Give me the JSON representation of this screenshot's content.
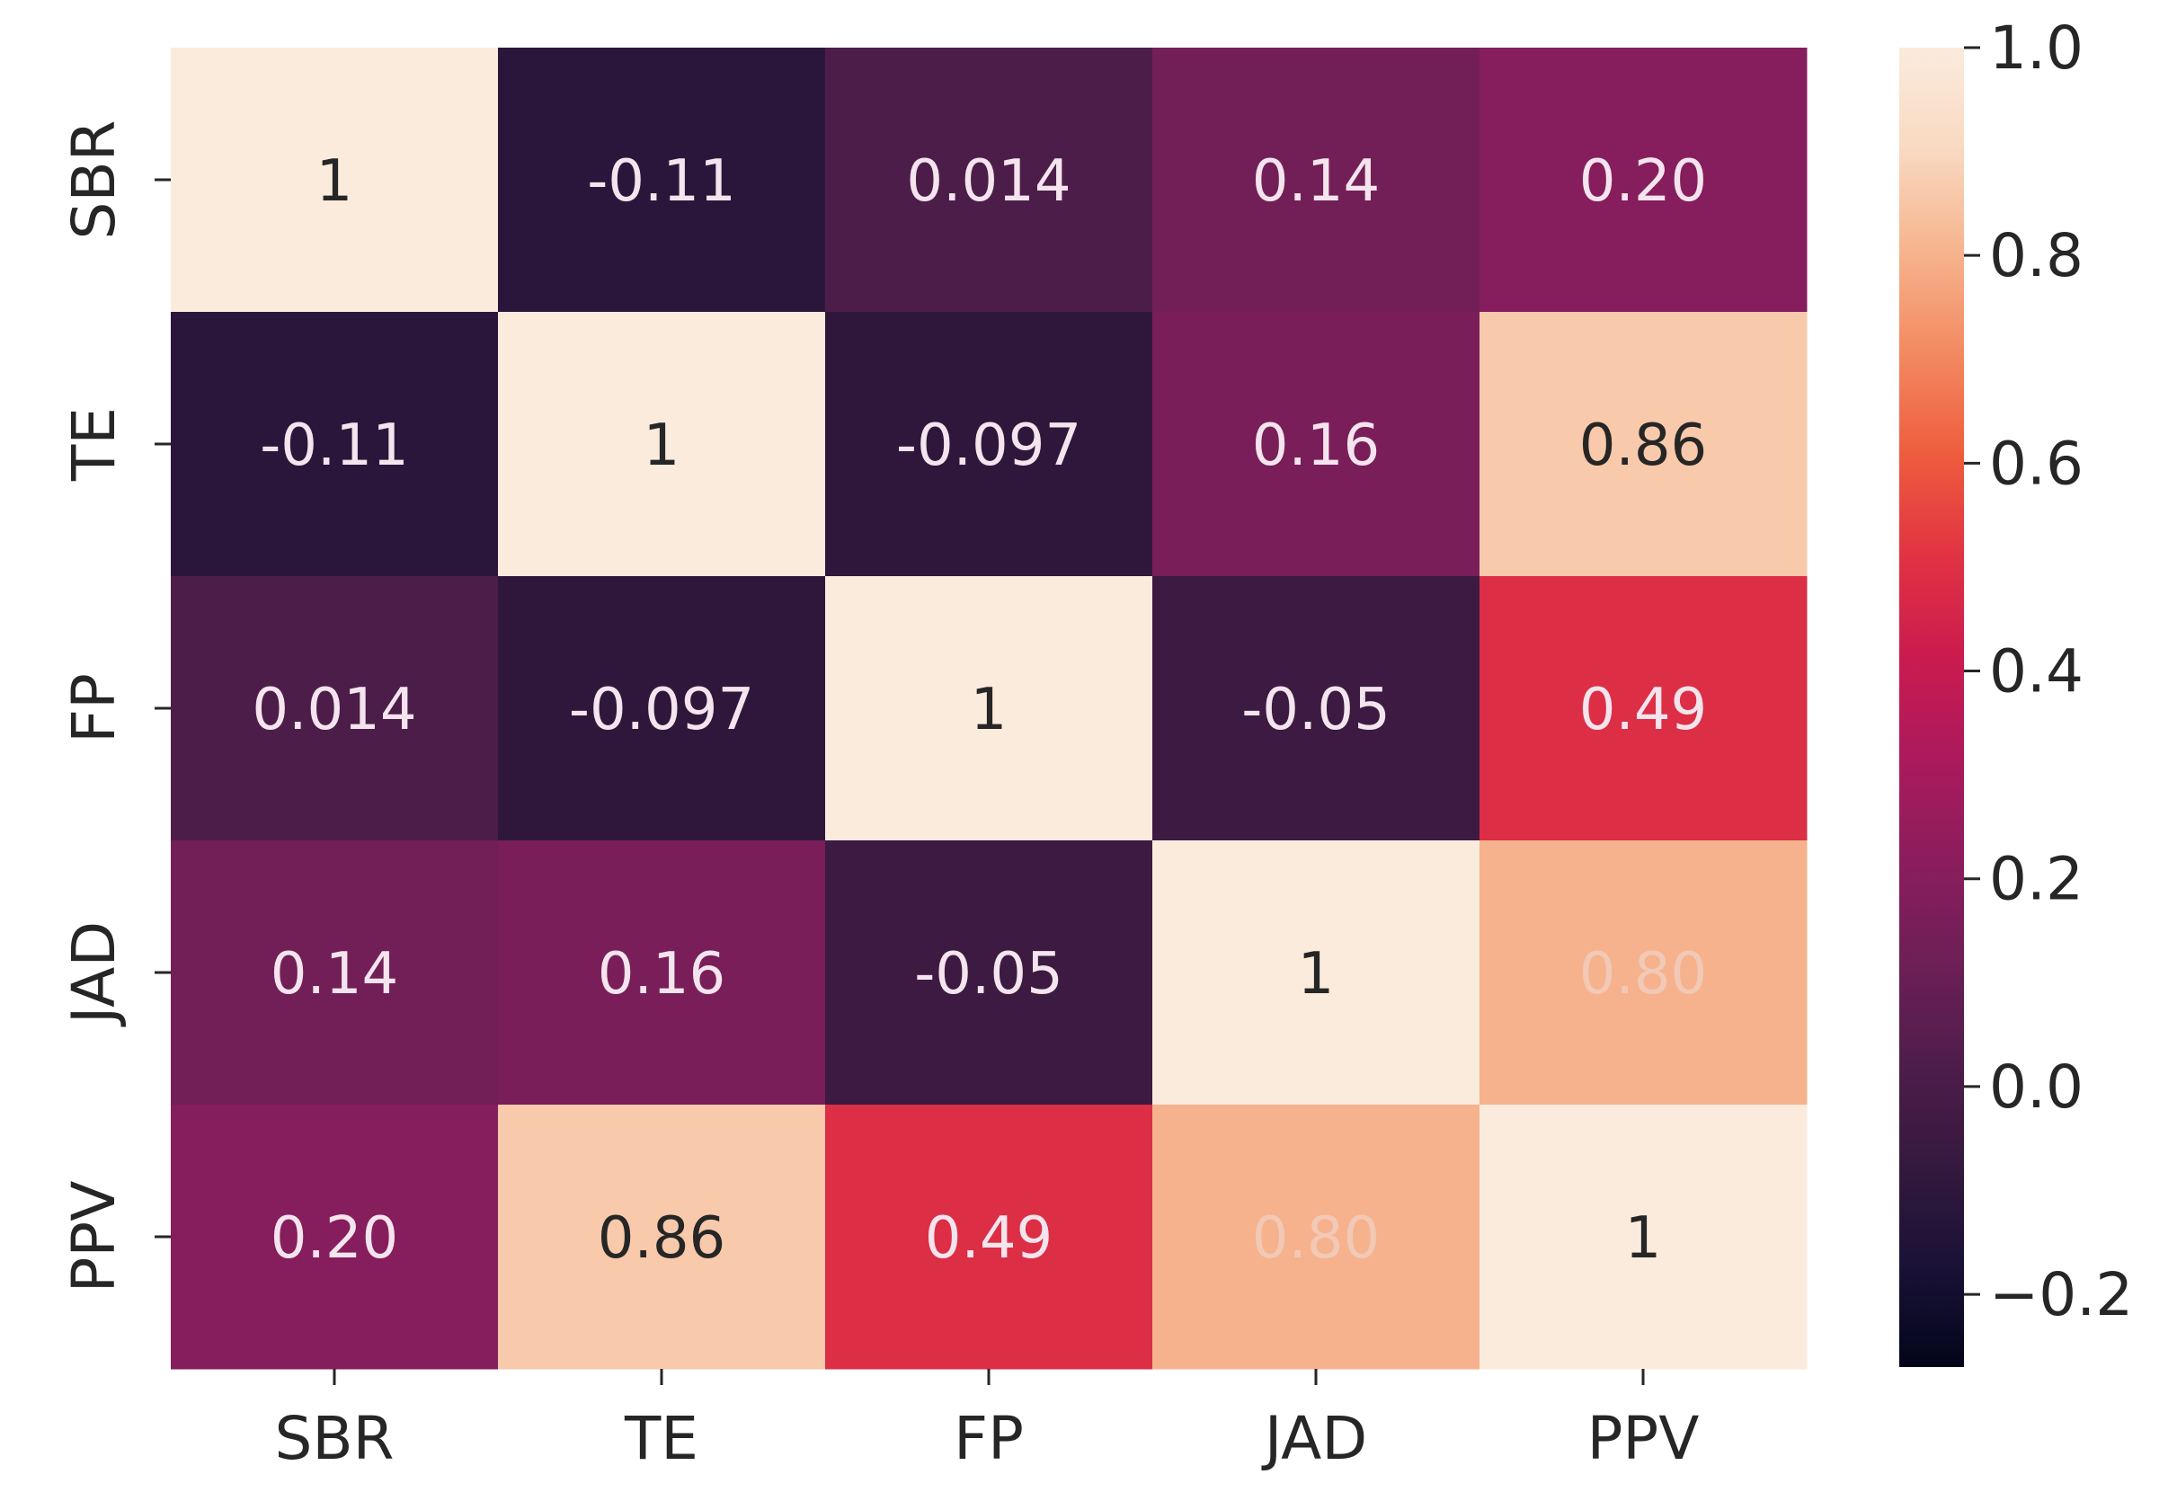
{
  "chart_data": {
    "type": "heatmap",
    "title": "",
    "xlabel": "",
    "ylabel": "",
    "x_categories": [
      "SBR",
      "TE",
      "FP",
      "JAD",
      "PPV"
    ],
    "y_categories": [
      "SBR",
      "TE",
      "FP",
      "JAD",
      "PPV"
    ],
    "values": [
      [
        1,
        -0.11,
        0.014,
        0.14,
        0.2
      ],
      [
        -0.11,
        1,
        -0.097,
        0.16,
        0.86
      ],
      [
        0.014,
        -0.097,
        1,
        -0.05,
        0.49
      ],
      [
        0.14,
        0.16,
        -0.05,
        1,
        0.8
      ],
      [
        0.2,
        0.86,
        0.49,
        0.8,
        1
      ]
    ],
    "annotations": [
      [
        "1",
        "-0.11",
        "0.014",
        "0.14",
        "0.20"
      ],
      [
        "-0.11",
        "1",
        "-0.097",
        "0.16",
        "0.86"
      ],
      [
        "0.014",
        "-0.097",
        "1",
        "-0.05",
        "0.49"
      ],
      [
        "0.14",
        "0.16",
        "-0.05",
        "1",
        "0.80"
      ],
      [
        "0.20",
        "0.86",
        "0.49",
        "0.80",
        "1"
      ]
    ],
    "colorbar": {
      "vmin": -0.27,
      "vmax": 1.0,
      "ticks": [
        1.0,
        0.8,
        0.6,
        0.4,
        0.2,
        0.0,
        -0.2
      ],
      "tick_labels": [
        "1.0",
        "0.8",
        "0.6",
        "0.4",
        "0.2",
        "0.0",
        "−0.2"
      ],
      "colormap": "rocket",
      "colormap_stops": [
        "#03051a",
        "#1a1237",
        "#35193e",
        "#4f1d4b",
        "#6d1f56",
        "#8c1d5d",
        "#ab1a5c",
        "#cb1b4f",
        "#e13342",
        "#ee5d3e",
        "#f38a61",
        "#f6b48e",
        "#f9d9c1",
        "#faebdd"
      ]
    }
  }
}
